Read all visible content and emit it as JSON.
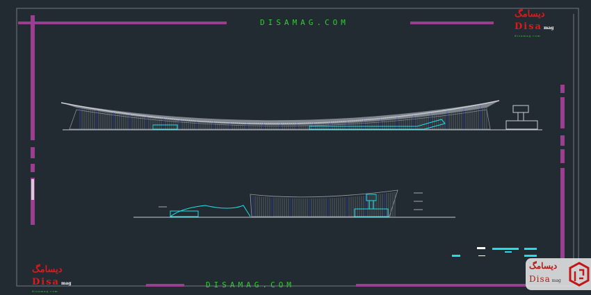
{
  "watermark": {
    "top_text": "DISAMAG.COM",
    "bottom_text": "DISAMAG.COM"
  },
  "logos": {
    "persian": "دیسامگ",
    "brand": "Disa",
    "suffix": "mag",
    "url": "disamag.com"
  },
  "colors": {
    "background": "#222a32",
    "frame": "#9a3f8f",
    "border": "#5a6068",
    "linework": "#c8cdd2",
    "cyan": "#1fe0e8",
    "blue": "#3a4bd8",
    "watermark": "#2fd02f",
    "logo_red": "#e01818"
  }
}
